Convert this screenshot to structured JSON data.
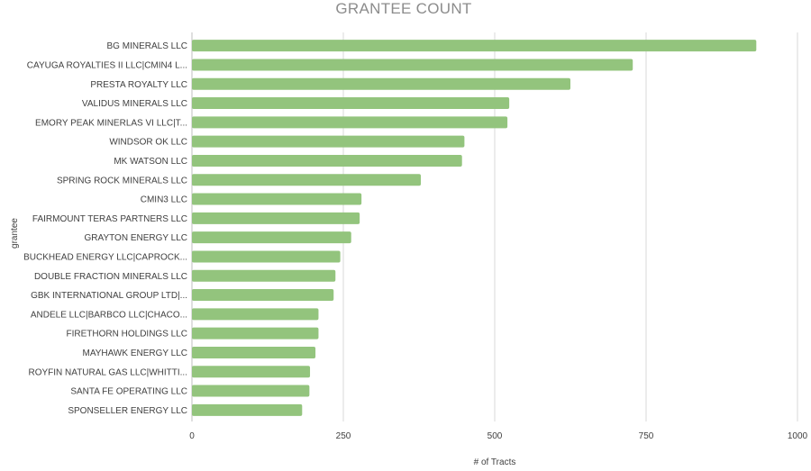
{
  "chart_data": {
    "type": "bar",
    "orientation": "horizontal",
    "title": "GRANTEE COUNT",
    "xlabel": "# of Tracts",
    "ylabel": "grantee",
    "categories": [
      "BG MINERALS LLC",
      "CAYUGA ROYALTIES II LLC|CMIN4 L...",
      "PRESTA ROYALTY LLC",
      "VALIDUS MINERALS LLC",
      "EMORY PEAK MINERLAS VI LLC|T...",
      "WINDSOR OK LLC",
      "MK WATSON LLC",
      "SPRING ROCK MINERALS LLC",
      "CMIN3 LLC",
      "FAIRMOUNT TERAS PARTNERS LLC",
      "GRAYTON ENERGY LLC",
      "BUCKHEAD ENERGY LLC|CAPROCK...",
      "DOUBLE FRACTION MINERALS LLC",
      "GBK INTERNATIONAL GROUP LTD|...",
      "ANDELE LLC|BARBCO LLC|CHACO...",
      "FIRETHORN HOLDINGS LLC",
      "MAYHAWK ENERGY LLC",
      "ROYFIN NATURAL GAS LLC|WHITTI...",
      "SANTA FE OPERATING LLC",
      "SPONSELLER ENERGY LLC"
    ],
    "values": [
      932,
      728,
      625,
      524,
      521,
      450,
      446,
      378,
      280,
      277,
      263,
      245,
      237,
      234,
      209,
      209,
      204,
      195,
      194,
      182
    ],
    "xlim": [
      0,
      1000
    ],
    "xticks": [
      "0",
      "250",
      "500",
      "750",
      "1000"
    ],
    "xtick_values": [
      0,
      250,
      500,
      750,
      1000
    ],
    "grid": true,
    "legend": "none",
    "colors": {
      "bar": "#93c47d",
      "gridline": "#d9d9d9",
      "title": "#8c8c8c",
      "text": "#404040"
    }
  }
}
